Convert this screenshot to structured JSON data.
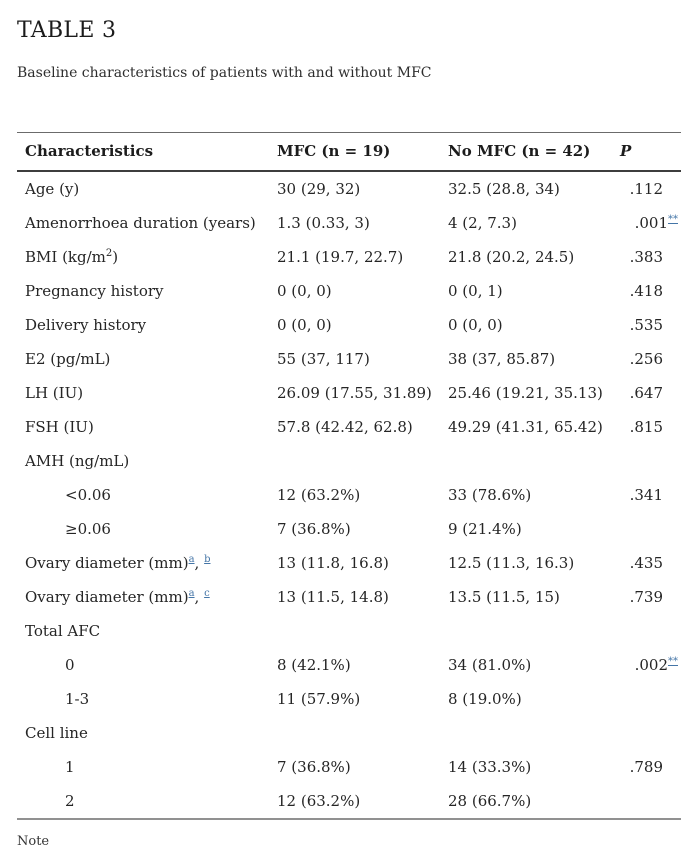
{
  "page": {
    "title": "TABLE 3",
    "caption": "Baseline characteristics of patients with and without MFC",
    "note_label": "Note"
  },
  "colors": {
    "link_blue": "#4475a7",
    "text_dark": "#252525",
    "header_rule": "#3d3d3d",
    "table_bottom_rule": "#919191"
  },
  "table": {
    "columns": [
      {
        "label": "Characteristics"
      },
      {
        "label": "MFC (n = 19)"
      },
      {
        "label": "No MFC (n = 42)"
      },
      {
        "label": "P"
      }
    ],
    "rows": [
      {
        "indent": false,
        "label": [
          {
            "text": "Age (y)"
          }
        ],
        "mfc": "30 (29, 32)",
        "no_mfc": "32.5 (28.8, 34)",
        "p": [
          {
            "text": ".112"
          }
        ]
      },
      {
        "indent": false,
        "label": [
          {
            "text": "Amenorrhoea duration (years)"
          }
        ],
        "mfc": "1.3 (0.33, 3)",
        "no_mfc": "4 (2, 7.3)",
        "p": [
          {
            "text": ".001"
          },
          {
            "sup_link": "**"
          }
        ]
      },
      {
        "indent": false,
        "label": [
          {
            "text": "BMI (kg/m"
          },
          {
            "sup": "2"
          },
          {
            "text": ")"
          }
        ],
        "mfc": "21.1 (19.7, 22.7)",
        "no_mfc": "21.8 (20.2, 24.5)",
        "p": [
          {
            "text": ".383"
          }
        ]
      },
      {
        "indent": false,
        "label": [
          {
            "text": "Pregnancy history"
          }
        ],
        "mfc": "0 (0, 0)",
        "no_mfc": "0 (0, 1)",
        "p": [
          {
            "text": ".418"
          }
        ]
      },
      {
        "indent": false,
        "label": [
          {
            "text": "Delivery history"
          }
        ],
        "mfc": "0 (0, 0)",
        "no_mfc": "0 (0, 0)",
        "p": [
          {
            "text": ".535"
          }
        ]
      },
      {
        "indent": false,
        "label": [
          {
            "text": "E2 (pg/mL)"
          }
        ],
        "mfc": "55 (37, 117)",
        "no_mfc": "38 (37, 85.87)",
        "p": [
          {
            "text": ".256"
          }
        ]
      },
      {
        "indent": false,
        "label": [
          {
            "text": "LH (IU)"
          }
        ],
        "mfc": "26.09 (17.55, 31.89)",
        "no_mfc": "25.46 (19.21, 35.13)",
        "p": [
          {
            "text": ".647"
          }
        ]
      },
      {
        "indent": false,
        "label": [
          {
            "text": "FSH (IU)"
          }
        ],
        "mfc": "57.8 (42.42, 62.8)",
        "no_mfc": "49.29 (41.31, 65.42)",
        "p": [
          {
            "text": ".815"
          }
        ]
      },
      {
        "indent": false,
        "label": [
          {
            "text": "AMH (ng/mL)"
          }
        ],
        "mfc": "",
        "no_mfc": "",
        "p": []
      },
      {
        "indent": true,
        "label": [
          {
            "text": "<0.06"
          }
        ],
        "mfc": "12 (63.2%)",
        "no_mfc": "33 (78.6%)",
        "p": [
          {
            "text": ".341"
          }
        ]
      },
      {
        "indent": true,
        "label": [
          {
            "text": "≥0.06"
          }
        ],
        "mfc": "7 (36.8%)",
        "no_mfc": "9 (21.4%)",
        "p": []
      },
      {
        "indent": false,
        "label": [
          {
            "text": "Ovary diameter (mm)"
          },
          {
            "sup_link": "a"
          },
          {
            "text": ", "
          },
          {
            "sup_link": "b"
          }
        ],
        "mfc": "13 (11.8, 16.8)",
        "no_mfc": "12.5 (11.3, 16.3)",
        "p": [
          {
            "text": ".435"
          }
        ]
      },
      {
        "indent": false,
        "label": [
          {
            "text": "Ovary diameter (mm)"
          },
          {
            "sup_link": "a"
          },
          {
            "text": ", "
          },
          {
            "sup_link": "c"
          }
        ],
        "mfc": "13 (11.5, 14.8)",
        "no_mfc": "13.5 (11.5, 15)",
        "p": [
          {
            "text": ".739"
          }
        ]
      },
      {
        "indent": false,
        "label": [
          {
            "text": "Total AFC"
          }
        ],
        "mfc": "",
        "no_mfc": "",
        "p": []
      },
      {
        "indent": true,
        "label": [
          {
            "text": "0"
          }
        ],
        "mfc": "8 (42.1%)",
        "no_mfc": "34 (81.0%)",
        "p": [
          {
            "text": ".002"
          },
          {
            "sup_link": "**"
          }
        ]
      },
      {
        "indent": true,
        "label": [
          {
            "text": "1-3"
          }
        ],
        "mfc": "11 (57.9%)",
        "no_mfc": "8 (19.0%)",
        "p": []
      },
      {
        "indent": false,
        "label": [
          {
            "text": "Cell line"
          }
        ],
        "mfc": "",
        "no_mfc": "",
        "p": []
      },
      {
        "indent": true,
        "label": [
          {
            "text": "1"
          }
        ],
        "mfc": "7 (36.8%)",
        "no_mfc": "14 (33.3%)",
        "p": [
          {
            "text": ".789"
          }
        ]
      },
      {
        "indent": true,
        "label": [
          {
            "text": "2"
          }
        ],
        "mfc": "12 (63.2%)",
        "no_mfc": "28 (66.7%)",
        "p": []
      }
    ]
  }
}
